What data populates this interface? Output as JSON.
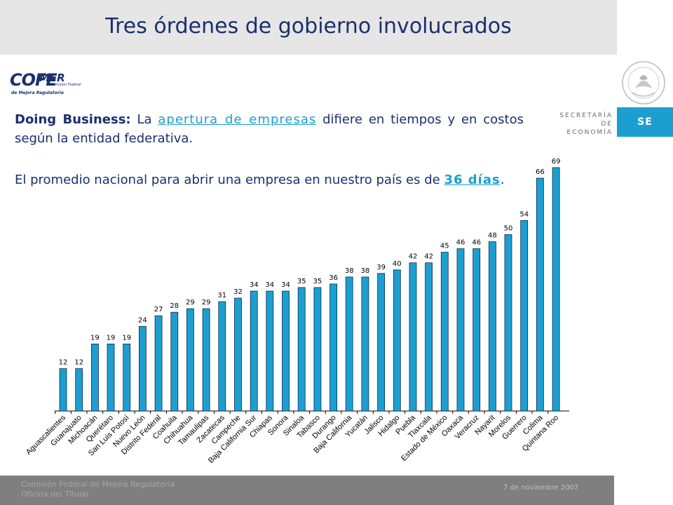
{
  "header": {
    "title": "Tres órdenes de gobierno involucrados"
  },
  "logo": {
    "main": "COFE",
    "mer": "MER",
    "sub1": "Comisión Federal",
    "sub2": "de Mejora Regulatoria"
  },
  "branding": {
    "secretaria_line1": "SECRETARÍA",
    "secretaria_line2": "DE ECONOMÍA",
    "se": "SE"
  },
  "text": {
    "p1_label": "Doing Business:",
    "p1_a": " La ",
    "p1_link": "apertura de empresas",
    "p1_b": " difiere en tiempos y en costos según la entidad federativa.",
    "p2_a": "El promedio nacional para abrir una empresa en nuestro país es de ",
    "p2_link": "36 días",
    "p2_b": "."
  },
  "footer": {
    "line1": "Comisión Federal de Mejora Regulatoria",
    "line2": "Oficina del Titular",
    "date": "7 de noviembre 2007"
  },
  "colors": {
    "bar": "#1c9fd0",
    "bar_stroke": "#0b2a4a",
    "title": "#1b2f6e",
    "footer": "#7f7f7f"
  },
  "chart_data": {
    "type": "bar",
    "categories": [
      "Aguascalientes",
      "Guanajuato",
      "Michoacán",
      "Querétaro",
      "San Luis Potosí",
      "Nuevo León",
      "Distrito Federal",
      "Coahuila",
      "Chihuahua",
      "Tamaulipas",
      "Zacatecas",
      "Campeche",
      "Baja California Sur",
      "Chiapas",
      "Sonora",
      "Sinaloa",
      "Tabasco",
      "Durango",
      "Baja California",
      "Yucatán",
      "Jalisco",
      "Hidalgo",
      "Puebla",
      "Tlaxcala",
      "Estado de México",
      "Oaxaca",
      "Veracruz",
      "Nayarit",
      "Morelos",
      "Guerrero",
      "Colima",
      "Quintana Roo"
    ],
    "values": [
      12,
      12,
      19,
      19,
      19,
      24,
      27,
      28,
      29,
      29,
      31,
      32,
      34,
      34,
      34,
      35,
      35,
      36,
      38,
      38,
      39,
      40,
      42,
      42,
      45,
      46,
      46,
      48,
      50,
      54,
      66,
      69
    ],
    "ylim": [
      0,
      75
    ],
    "grid": false,
    "legend": "none",
    "data_labels": true
  }
}
